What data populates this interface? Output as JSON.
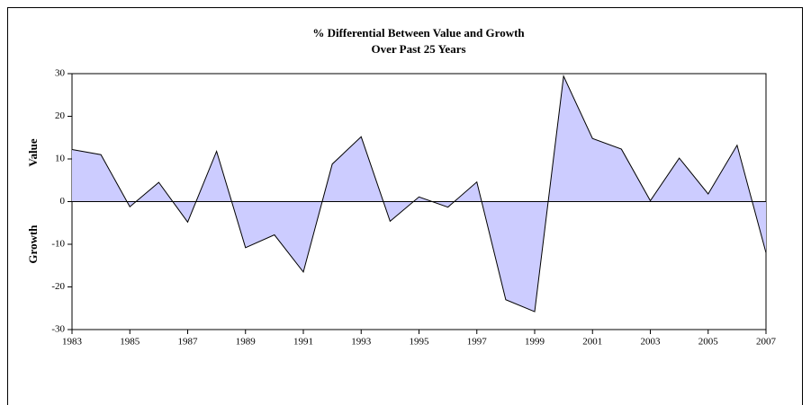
{
  "chart_data": {
    "type": "area",
    "title": "% Differential Between Value and Growth",
    "subtitle": "Over Past 25 Years",
    "y_label_positive": "Value",
    "y_label_negative": "Growth",
    "x": [
      1983,
      1984,
      1985,
      1986,
      1987,
      1988,
      1989,
      1990,
      1991,
      1992,
      1993,
      1994,
      1995,
      1996,
      1997,
      1998,
      1999,
      2000,
      2001,
      2002,
      2003,
      2004,
      2005,
      2006,
      2007
    ],
    "values": [
      12.2,
      11,
      -1.2,
      4.5,
      -4.8,
      11.8,
      -10.8,
      -7.8,
      -16.5,
      8.8,
      15.2,
      -4.6,
      1.1,
      -1.3,
      4.6,
      -23,
      -25.8,
      29.4,
      14.8,
      12.3,
      0.2,
      10.2,
      1.8,
      13.2,
      -12
    ],
    "color": "#ccccff",
    "xlim": [
      1983,
      2007
    ],
    "xticks": [
      1983,
      1985,
      1987,
      1989,
      1991,
      1993,
      1995,
      1997,
      1999,
      2001,
      2003,
      2005,
      2007
    ],
    "ylim": [
      -30,
      30
    ],
    "yticks": [
      -30,
      -20,
      -10,
      0,
      10,
      20,
      30
    ]
  }
}
